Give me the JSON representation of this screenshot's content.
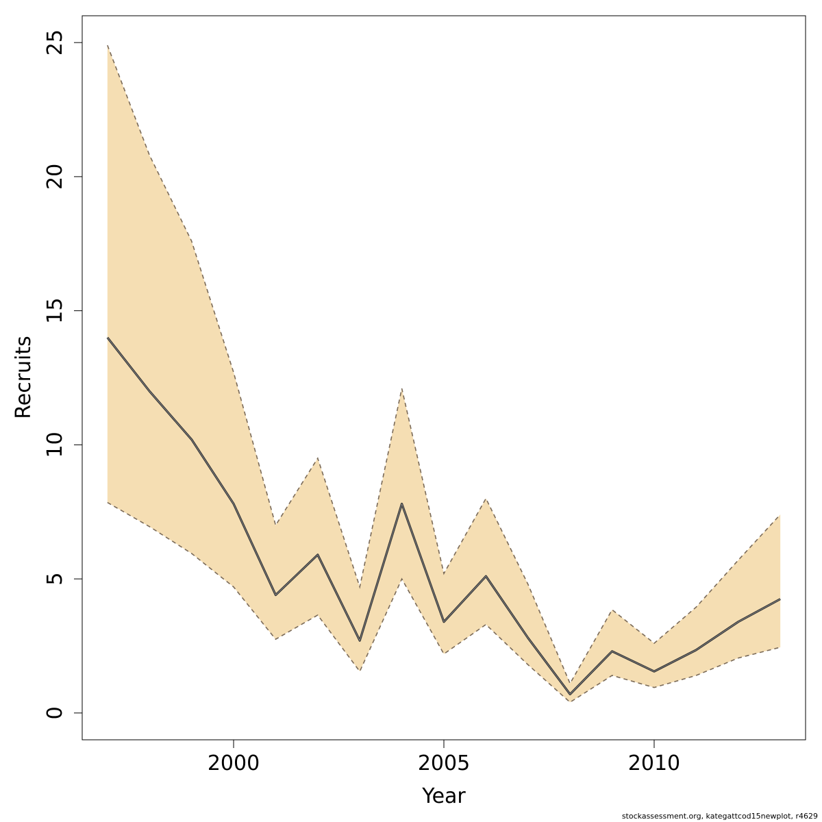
{
  "chart_data": {
    "type": "area",
    "title": "",
    "xlabel": "Year",
    "ylabel": "Recruits",
    "xlim": [
      1996.4,
      2013.6
    ],
    "ylim": [
      -1,
      26
    ],
    "xticks": [
      2000,
      2005,
      2010
    ],
    "yticks": [
      0,
      5,
      10,
      15,
      20,
      25
    ],
    "grid": false,
    "x": [
      1997,
      1998,
      1999,
      2000,
      2001,
      2002,
      2003,
      2004,
      2005,
      2006,
      2007,
      2008,
      2009,
      2010,
      2011,
      2012,
      2013
    ],
    "series": [
      {
        "role": "estimate",
        "values": [
          14.0,
          12.0,
          10.2,
          7.8,
          4.4,
          5.9,
          2.7,
          7.8,
          3.4,
          5.1,
          2.8,
          0.7,
          2.3,
          1.55,
          2.35,
          3.4,
          4.25
        ]
      },
      {
        "role": "upper",
        "values": [
          24.9,
          20.8,
          17.6,
          12.7,
          7.0,
          9.5,
          4.7,
          12.1,
          5.2,
          8.0,
          4.8,
          1.1,
          3.85,
          2.6,
          3.95,
          5.7,
          7.4
        ]
      },
      {
        "role": "lower",
        "values": [
          7.85,
          6.95,
          5.95,
          4.7,
          2.75,
          3.65,
          1.55,
          5.0,
          2.2,
          3.3,
          1.8,
          0.4,
          1.4,
          0.95,
          1.4,
          2.05,
          2.45
        ]
      }
    ],
    "colors": {
      "band": "#f5deb3",
      "estimate_line": "#333333",
      "bound_line": "#7a6a58",
      "axis": "#000000"
    }
  },
  "footer": {
    "credit": "stockassessment.org, kategattcod15newplot, r4629"
  }
}
